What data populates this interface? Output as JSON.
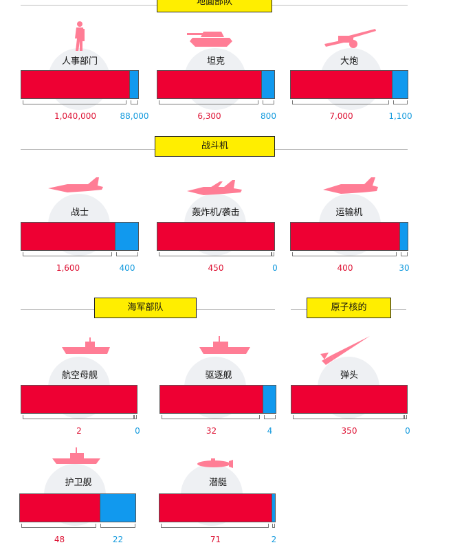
{
  "colors": {
    "side_a": "#ee0033",
    "side_b": "#1199ee",
    "heading_bg": "#ffee00"
  },
  "sections": {
    "ground": "地面部队",
    "air": "战斗机",
    "navy": "海军部队",
    "nuclear": "原子核的"
  },
  "items": {
    "personnel": {
      "label": "人事部门",
      "a": "1,040,000",
      "b": "88,000",
      "a_value": 1040000,
      "b_value": 88000,
      "icon": "soldier-icon"
    },
    "tanks": {
      "label": "坦克",
      "a": "6,300",
      "b": "800",
      "a_value": 6300,
      "b_value": 800,
      "icon": "tank-icon"
    },
    "artillery": {
      "label": "大炮",
      "a": "7,000",
      "b": "1,100",
      "a_value": 7000,
      "b_value": 1100,
      "icon": "artillery-icon"
    },
    "fighters": {
      "label": "战士",
      "a": "1,600",
      "b": "400",
      "a_value": 1600,
      "b_value": 400,
      "icon": "fighter-jet-icon"
    },
    "bombers": {
      "label": "轰炸机/袭击",
      "a": "450",
      "b": "0",
      "a_value": 450,
      "b_value": 0,
      "icon": "bomber-icon"
    },
    "transport": {
      "label": "运输机",
      "a": "400",
      "b": "30",
      "a_value": 400,
      "b_value": 30,
      "icon": "transport-plane-icon"
    },
    "carriers": {
      "label": "航空母舰",
      "a": "2",
      "b": "0",
      "a_value": 2,
      "b_value": 0,
      "icon": "aircraft-carrier-icon"
    },
    "destroyers": {
      "label": "驱逐舰",
      "a": "32",
      "b": "4",
      "a_value": 32,
      "b_value": 4,
      "icon": "destroyer-icon"
    },
    "warheads": {
      "label": "弹头",
      "a": "350",
      "b": "0",
      "a_value": 350,
      "b_value": 0,
      "icon": "missile-icon"
    },
    "frigates": {
      "label": "护卫舰",
      "a": "48",
      "b": "22",
      "a_value": 48,
      "b_value": 22,
      "icon": "frigate-icon"
    },
    "submarines": {
      "label": "潜艇",
      "a": "71",
      "b": "2",
      "a_value": 71,
      "b_value": 2,
      "icon": "submarine-icon"
    }
  }
}
